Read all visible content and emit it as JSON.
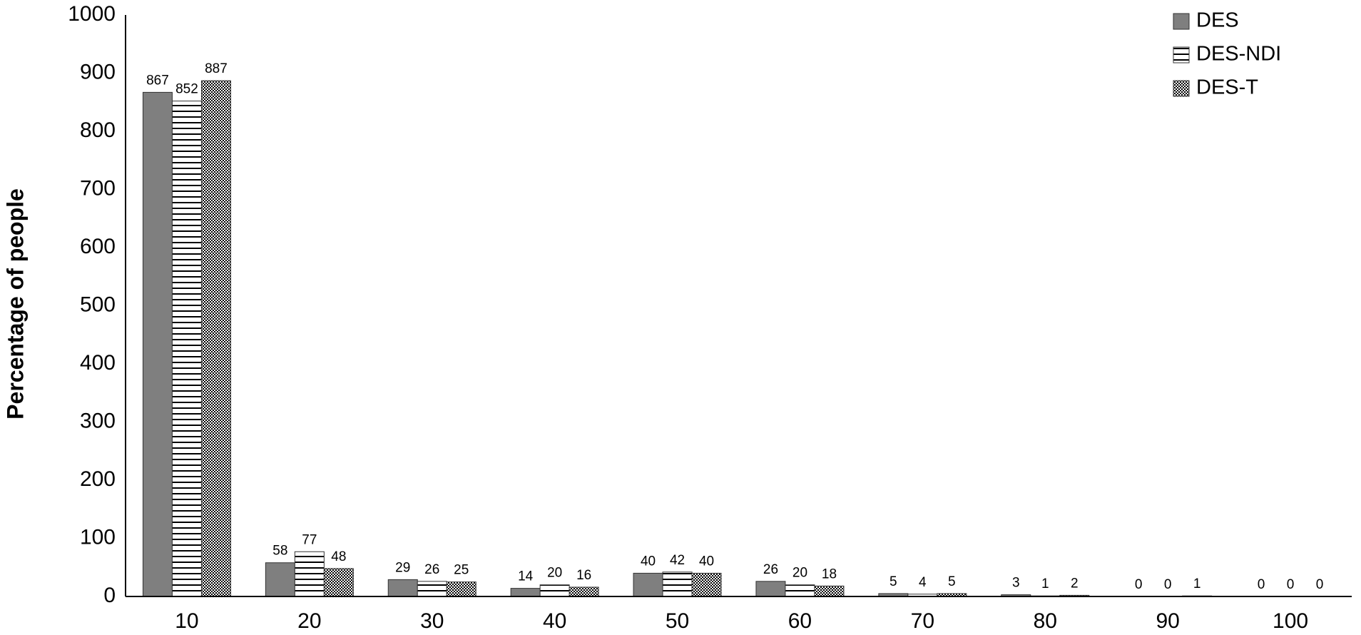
{
  "chart_data": {
    "type": "bar",
    "y_label": "Percentage of people",
    "categories": [
      "10",
      "20",
      "30",
      "40",
      "50",
      "60",
      "70",
      "80",
      "90",
      "100"
    ],
    "series": [
      {
        "name": "DES",
        "color": "#7f7f7f",
        "pattern": "solid",
        "values": [
          867,
          58,
          29,
          14,
          40,
          26,
          5,
          3,
          0,
          0
        ]
      },
      {
        "name": "DES-NDI",
        "color": "#000000",
        "pattern": "horizontal-lines",
        "values": [
          852,
          77,
          26,
          20,
          42,
          20,
          4,
          1,
          0,
          0
        ]
      },
      {
        "name": "DES-T",
        "color": "#000000",
        "pattern": "dots",
        "values": [
          887,
          48,
          25,
          16,
          40,
          18,
          5,
          2,
          1,
          0
        ]
      }
    ],
    "ylim": [
      0,
      1000
    ],
    "yticks": [
      0,
      100,
      200,
      300,
      400,
      500,
      600,
      700,
      800,
      900,
      1000
    ],
    "grid": false,
    "legend": "top-right"
  }
}
